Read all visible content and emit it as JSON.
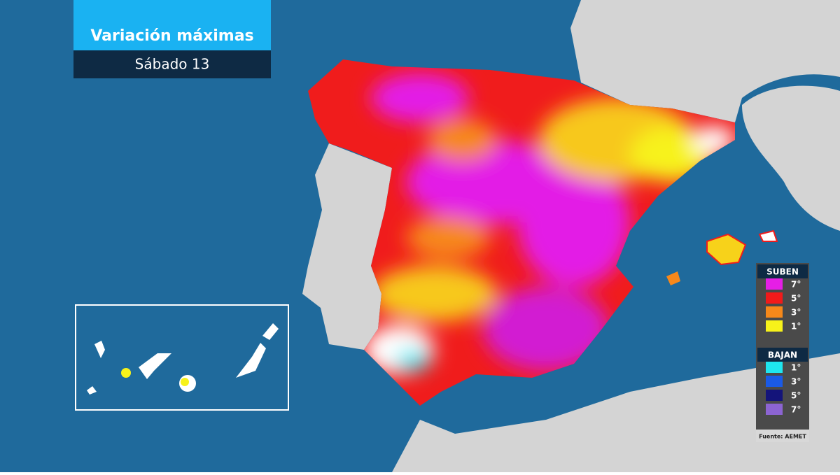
{
  "header": {
    "title": "Variación máximas",
    "subtitle": "Sábado 13"
  },
  "legend": {
    "rises": {
      "title": "SUBEN",
      "items": [
        {
          "label": "7°",
          "color": "#e61ee6"
        },
        {
          "label": "5°",
          "color": "#f21a1a"
        },
        {
          "label": "3°",
          "color": "#f7881a"
        },
        {
          "label": "1°",
          "color": "#f7f21a"
        }
      ]
    },
    "falls": {
      "title": "BAJAN",
      "items": [
        {
          "label": "1°",
          "color": "#1ee6f0"
        },
        {
          "label": "3°",
          "color": "#1a5ae6"
        },
        {
          "label": "5°",
          "color": "#14147a"
        },
        {
          "label": "7°",
          "color": "#8c64d2"
        }
      ]
    }
  },
  "source": "Fuente: AEMET"
}
